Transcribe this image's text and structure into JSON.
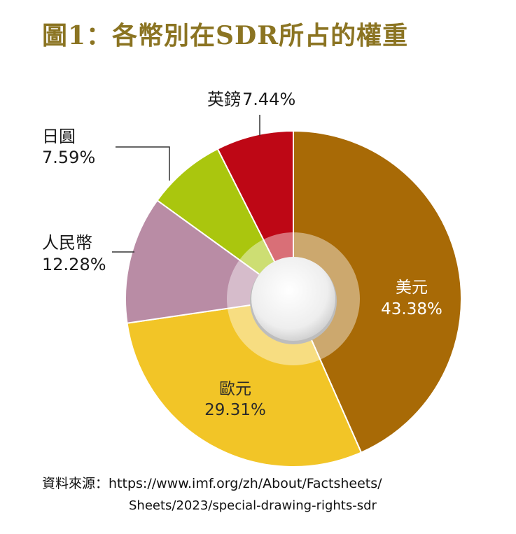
{
  "title": "圖1：各幣別在SDR所占的權重",
  "source_label": "資料來源：",
  "source_line1": "https://www.imf.org/zh/About/Factsheets/",
  "source_line2": "Sheets/2023/special-drawing-rights-sdr",
  "chart_data": {
    "type": "pie",
    "title": "圖1：各幣別在SDR所占的權重",
    "unit": "%",
    "slices": [
      {
        "name": "美元",
        "value": 43.38,
        "label": "43.38%",
        "color": "#a86a06"
      },
      {
        "name": "歐元",
        "value": 29.31,
        "label": "29.31%",
        "color": "#f2c527"
      },
      {
        "name": "人民幣",
        "value": 12.28,
        "label": "12.28%",
        "color": "#b98ca5"
      },
      {
        "name": "日圓",
        "value": 7.59,
        "label": "7.59%",
        "color": "#aac60e"
      },
      {
        "name": "英鎊",
        "value": 7.44,
        "label": "7.44%",
        "color": "#be0715"
      }
    ]
  }
}
